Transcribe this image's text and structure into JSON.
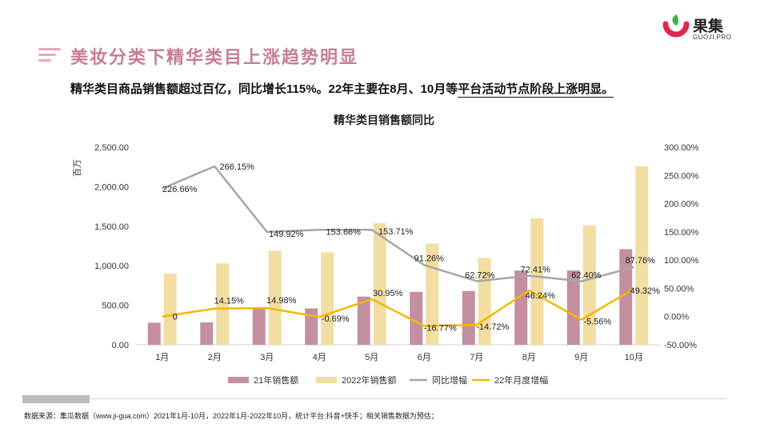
{
  "header": {
    "title": "美妆分类下精华类目上涨趋势明显",
    "subtitle_plain": "精华类目商品销售额超过百亿，同比增长115%。22年主要在8月、10月等",
    "subtitle_underlined": "平台活动节点阶段上涨明显。"
  },
  "logo": {
    "name": "果集",
    "sub": "GUOJI.PRO",
    "accent": "#e0284f",
    "leaf": "#3db54a"
  },
  "source_note": "数据来源：集瓜数据（www.ji-gua.com）2021年1月-10月，2022年1月-2022年10月，统计平台:抖音+快手；相关销售数据为预估；",
  "chart_data": {
    "type": "bar",
    "title": "精华类目销售额同比",
    "ylabel": "百万",
    "categories": [
      "1月",
      "2月",
      "3月",
      "4月",
      "5月",
      "6月",
      "7月",
      "8月",
      "9月",
      "10月"
    ],
    "ylim": [
      0,
      2500
    ],
    "y2lim": [
      -50,
      300
    ],
    "yticks": [
      "2,500.00",
      "2,000.00",
      "1,500.00",
      "1,000.00",
      "500.00",
      "0.00"
    ],
    "y2ticks": [
      "300.00%",
      "250.00%",
      "200.00%",
      "150.00%",
      "100.00%",
      "50.00%",
      "0.00%",
      "-50.00%"
    ],
    "series": [
      {
        "name": "21年销售额",
        "kind": "bar",
        "color": "#c48fa0",
        "values": [
          280,
          285,
          470,
          460,
          610,
          670,
          680,
          940,
          940,
          1210
        ]
      },
      {
        "name": "2022年销售额",
        "kind": "bar",
        "color": "#f2dda2",
        "values": [
          900,
          1030,
          1190,
          1170,
          1540,
          1280,
          1100,
          1600,
          1510,
          2260
        ]
      },
      {
        "name": "同比增幅",
        "kind": "line",
        "axis": "right",
        "color": "#a6a6a6",
        "values": [
          226.66,
          266.15,
          149.92,
          153.66,
          153.71,
          91.26,
          62.72,
          72.41,
          62.4,
          87.76
        ],
        "labels": [
          "226.66%",
          "266.15%",
          "149.92%",
          "153.66%",
          "153.71%",
          "91.26%",
          "62.72%",
          "72.41%",
          "62.40%",
          "87.76%"
        ]
      },
      {
        "name": "22年月度增幅",
        "kind": "line",
        "axis": "right",
        "color": "#f5b800",
        "values": [
          0,
          14.15,
          14.98,
          -0.69,
          30.95,
          -16.77,
          -14.72,
          46.24,
          -5.56,
          49.32
        ],
        "labels": [
          "0",
          "14.15%",
          "14.98%",
          "-0.69%",
          "30.95%",
          "-16.77%",
          "-14.72%",
          "46.24%",
          "-5.56%",
          "49.32%"
        ]
      }
    ],
    "legend_position": "bottom",
    "grid": false
  }
}
